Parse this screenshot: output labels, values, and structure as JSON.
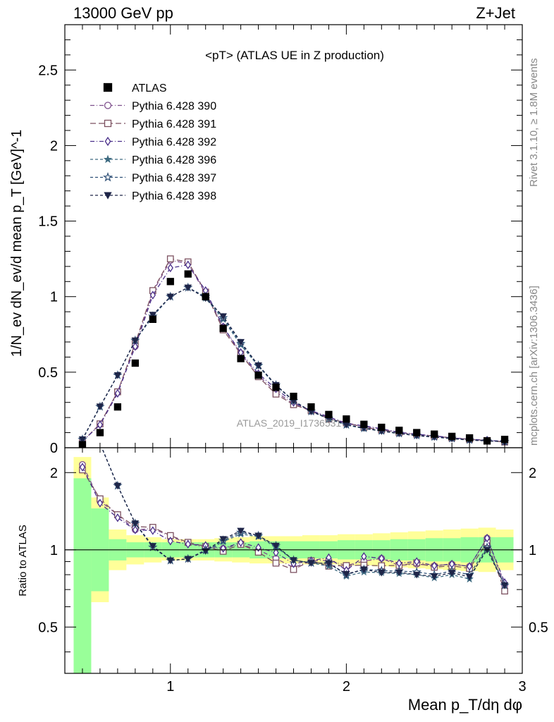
{
  "header": {
    "left": "13000 GeV pp",
    "right": "Z+Jet"
  },
  "side_text": {
    "rivet": "Rivet 3.1.10, ≥ 1.8M events",
    "mcplots": "mcplots.cern.ch [arXiv:1306.3436]"
  },
  "chart_data": {
    "type": "scatter",
    "title": "<pT> (ATLAS UE in Z production)",
    "watermark": "ATLAS_2019_I1736531",
    "xlabel": "Mean p_T/dη dφ",
    "ylabel": "1/N_ev dN_ev/d mean p_T [GeV]^-1",
    "ratio_ylabel": "Ratio to ATLAS",
    "xlim": [
      0.4,
      3.0
    ],
    "ylim": [
      0,
      2.8
    ],
    "ratio_ylim": [
      0.33,
      2.5
    ],
    "x_ticks": [
      "1",
      "2",
      "3"
    ],
    "y_ticks": [
      "0",
      "0.5",
      "1",
      "1.5",
      "2",
      "2.5"
    ],
    "ratio_y_ticks": [
      "0.5",
      "1",
      "2"
    ],
    "legend_position": "top-left",
    "x": [
      0.5,
      0.6,
      0.7,
      0.8,
      0.9,
      1.0,
      1.1,
      1.2,
      1.3,
      1.4,
      1.5,
      1.6,
      1.7,
      1.8,
      1.9,
      2.0,
      2.1,
      2.2,
      2.3,
      2.4,
      2.5,
      2.6,
      2.7,
      2.8,
      2.9
    ],
    "data": {
      "name": "ATLAS",
      "values": [
        0.02,
        0.1,
        0.27,
        0.56,
        0.85,
        1.1,
        1.15,
        1.0,
        0.79,
        0.59,
        0.48,
        0.4,
        0.34,
        0.27,
        0.22,
        0.19,
        0.155,
        0.135,
        0.115,
        0.1,
        0.09,
        0.075,
        0.065,
        0.045,
        0.055
      ]
    },
    "band_inner": [
      1.9,
      1.45,
      1.1,
      1.07,
      1.07,
      1.07,
      1.07,
      1.07,
      1.07,
      1.07,
      1.08,
      1.08,
      1.08,
      1.08,
      1.08,
      1.09,
      1.09,
      1.09,
      1.1,
      1.1,
      1.11,
      1.11,
      1.12,
      1.12,
      1.12
    ],
    "band_outer": [
      2.3,
      1.6,
      1.2,
      1.14,
      1.12,
      1.1,
      1.1,
      1.1,
      1.11,
      1.12,
      1.13,
      1.13,
      1.13,
      1.14,
      1.14,
      1.15,
      1.15,
      1.16,
      1.17,
      1.18,
      1.19,
      1.2,
      1.21,
      1.22,
      1.2
    ],
    "series": [
      {
        "name": "Pythia 6.428 390",
        "color": "#7e4f8c",
        "marker": "circle-open",
        "dash": "6,3,1,3",
        "values": [
          0.043,
          0.155,
          0.37,
          0.67,
          1.03,
          1.24,
          1.22,
          1.02,
          0.8,
          0.62,
          0.48,
          0.37,
          0.29,
          0.245,
          0.2,
          0.165,
          0.14,
          0.125,
          0.1,
          0.088,
          0.078,
          0.066,
          0.056,
          0.05,
          0.04
        ]
      },
      {
        "name": "Pythia 6.428 391",
        "color": "#7c5160",
        "marker": "square-open",
        "dash": "8,4",
        "values": [
          0.041,
          0.158,
          0.37,
          0.69,
          1.04,
          1.25,
          1.23,
          1.03,
          0.78,
          0.62,
          0.47,
          0.355,
          0.285,
          0.245,
          0.19,
          0.165,
          0.135,
          0.117,
          0.1,
          0.089,
          0.077,
          0.065,
          0.055,
          0.048,
          0.038
        ]
      },
      {
        "name": "Pythia 6.428 392",
        "color": "#4a2f8a",
        "marker": "diamond-open",
        "dash": "6,3,1,3",
        "values": [
          0.042,
          0.152,
          0.36,
          0.67,
          1.01,
          1.19,
          1.21,
          1.04,
          0.8,
          0.63,
          0.49,
          0.39,
          0.3,
          0.245,
          0.205,
          0.158,
          0.146,
          0.125,
          0.102,
          0.09,
          0.078,
          0.066,
          0.056,
          0.05,
          0.041
        ]
      },
      {
        "name": "Pythia 6.428 396",
        "color": "#3d6a80",
        "marker": "star-filled",
        "dash": "4,3",
        "values": [
          0.055,
          0.27,
          0.48,
          0.71,
          0.87,
          1.0,
          1.06,
          0.99,
          0.85,
          0.68,
          0.54,
          0.41,
          0.31,
          0.24,
          0.19,
          0.15,
          0.127,
          0.11,
          0.093,
          0.08,
          0.07,
          0.06,
          0.05,
          0.046,
          0.04
        ]
      },
      {
        "name": "Pythia 6.428 397",
        "color": "#2e4f76",
        "marker": "star-open",
        "dash": "4,3",
        "values": [
          0.055,
          0.272,
          0.48,
          0.71,
          0.87,
          1.0,
          1.06,
          1.0,
          0.86,
          0.69,
          0.545,
          0.415,
          0.31,
          0.24,
          0.195,
          0.152,
          0.13,
          0.112,
          0.095,
          0.082,
          0.072,
          0.062,
          0.052,
          0.046,
          0.04
        ]
      },
      {
        "name": "Pythia 6.428 398",
        "color": "#1e2548",
        "marker": "triangle-down-filled",
        "dash": "4,3",
        "values": [
          0.056,
          0.273,
          0.48,
          0.71,
          0.88,
          1.0,
          1.06,
          0.99,
          0.87,
          0.7,
          0.545,
          0.415,
          0.31,
          0.24,
          0.195,
          0.153,
          0.13,
          0.11,
          0.094,
          0.08,
          0.071,
          0.061,
          0.051,
          0.045,
          0.04
        ]
      }
    ]
  }
}
